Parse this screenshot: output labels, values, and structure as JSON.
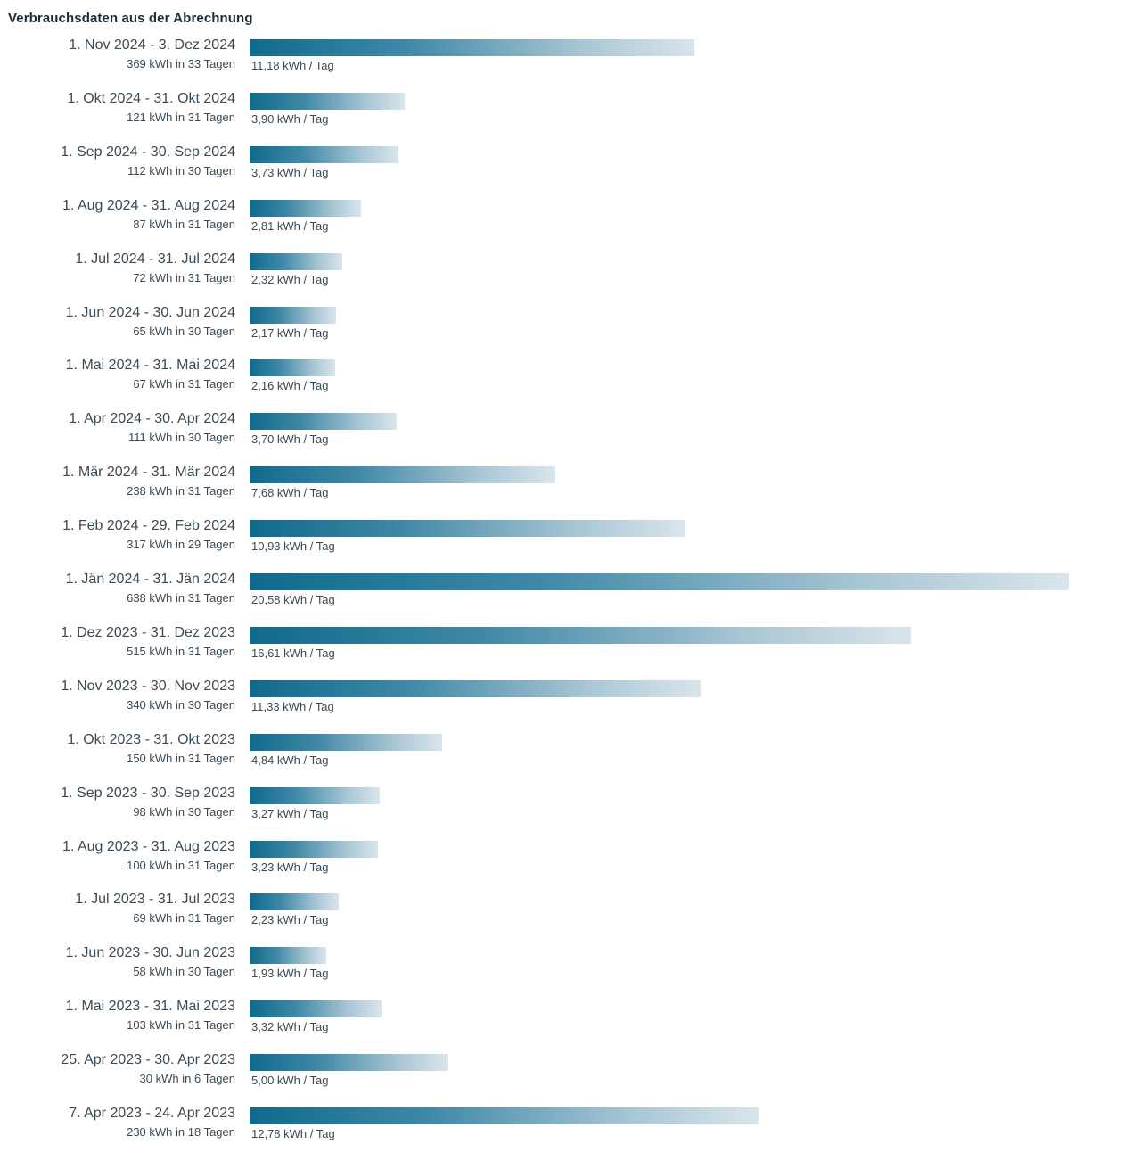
{
  "title": "Verbrauchsdaten aus der Abrechnung",
  "colors": {
    "bar_start": "#0f6a8c",
    "bar_end": "#d9e5ec",
    "text": "#3b4a55"
  },
  "chart_data": {
    "type": "bar",
    "orientation": "horizontal",
    "title": "Verbrauchsdaten aus der Abrechnung",
    "value_unit": "kWh / Tag",
    "xlim": [
      0,
      20.58
    ],
    "rows": [
      {
        "period": "1. Nov 2024 - 3. Dez 2024",
        "total": "369 kWh in 33 Tagen",
        "daily_label": "11,18 kWh / Tag",
        "value": 11.18
      },
      {
        "period": "1. Okt 2024 - 31. Okt 2024",
        "total": "121 kWh in 31 Tagen",
        "daily_label": "3,90 kWh / Tag",
        "value": 3.9
      },
      {
        "period": "1. Sep 2024 - 30. Sep 2024",
        "total": "112 kWh in 30 Tagen",
        "daily_label": "3,73 kWh / Tag",
        "value": 3.73
      },
      {
        "period": "1. Aug 2024 - 31. Aug 2024",
        "total": "87 kWh in 31 Tagen",
        "daily_label": "2,81 kWh / Tag",
        "value": 2.81
      },
      {
        "period": "1. Jul 2024 - 31. Jul 2024",
        "total": "72 kWh in 31 Tagen",
        "daily_label": "2,32 kWh / Tag",
        "value": 2.32
      },
      {
        "period": "1. Jun 2024 - 30. Jun 2024",
        "total": "65 kWh in 30 Tagen",
        "daily_label": "2,17 kWh / Tag",
        "value": 2.17
      },
      {
        "period": "1. Mai 2024 - 31. Mai 2024",
        "total": "67 kWh in 31 Tagen",
        "daily_label": "2,16 kWh / Tag",
        "value": 2.16
      },
      {
        "period": "1. Apr 2024 - 30. Apr 2024",
        "total": "111 kWh in 30 Tagen",
        "daily_label": "3,70 kWh / Tag",
        "value": 3.7
      },
      {
        "period": "1. Mär 2024 - 31. Mär 2024",
        "total": "238 kWh in 31 Tagen",
        "daily_label": "7,68 kWh / Tag",
        "value": 7.68
      },
      {
        "period": "1. Feb 2024 - 29. Feb 2024",
        "total": "317 kWh in 29 Tagen",
        "daily_label": "10,93 kWh / Tag",
        "value": 10.93
      },
      {
        "period": "1. Jän 2024 - 31. Jän 2024",
        "total": "638 kWh in 31 Tagen",
        "daily_label": "20,58 kWh / Tag",
        "value": 20.58
      },
      {
        "period": "1. Dez 2023 - 31. Dez 2023",
        "total": "515 kWh in 31 Tagen",
        "daily_label": "16,61 kWh / Tag",
        "value": 16.61
      },
      {
        "period": "1. Nov 2023 - 30. Nov 2023",
        "total": "340 kWh in 30 Tagen",
        "daily_label": "11,33 kWh / Tag",
        "value": 11.33
      },
      {
        "period": "1. Okt 2023 - 31. Okt 2023",
        "total": "150 kWh in 31 Tagen",
        "daily_label": "4,84 kWh / Tag",
        "value": 4.84
      },
      {
        "period": "1. Sep 2023 - 30. Sep 2023",
        "total": "98 kWh in 30 Tagen",
        "daily_label": "3,27 kWh / Tag",
        "value": 3.27
      },
      {
        "period": "1. Aug 2023 - 31. Aug 2023",
        "total": "100 kWh in 31 Tagen",
        "daily_label": "3,23 kWh / Tag",
        "value": 3.23
      },
      {
        "period": "1. Jul 2023 - 31. Jul 2023",
        "total": "69 kWh in 31 Tagen",
        "daily_label": "2,23 kWh / Tag",
        "value": 2.23
      },
      {
        "period": "1. Jun 2023 - 30. Jun 2023",
        "total": "58 kWh in 30 Tagen",
        "daily_label": "1,93 kWh / Tag",
        "value": 1.93
      },
      {
        "period": "1. Mai 2023 - 31. Mai 2023",
        "total": "103 kWh in 31 Tagen",
        "daily_label": "3,32 kWh / Tag",
        "value": 3.32
      },
      {
        "period": "25. Apr 2023 - 30. Apr 2023",
        "total": "30 kWh in 6 Tagen",
        "daily_label": "5,00 kWh / Tag",
        "value": 5.0
      },
      {
        "period": "7. Apr 2023 - 24. Apr 2023",
        "total": "230 kWh in 18 Tagen",
        "daily_label": "12,78 kWh / Tag",
        "value": 12.78
      }
    ]
  }
}
